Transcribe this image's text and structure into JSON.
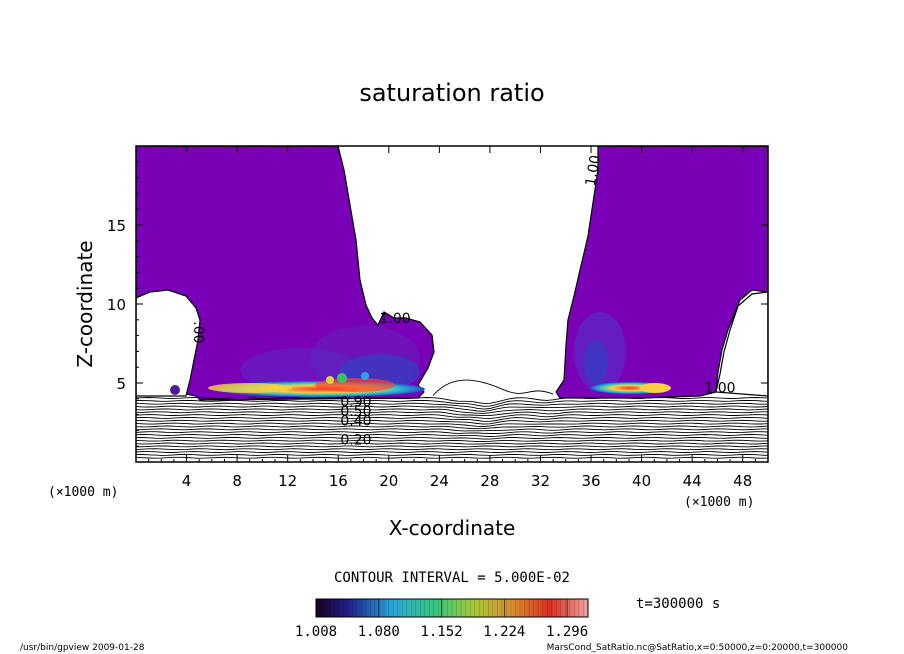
{
  "chart_data": {
    "type": "heatmap",
    "title": "saturation ratio",
    "xlabel": "X-coordinate",
    "ylabel": "Z-coordinate",
    "x_unit": "(×1000 m)",
    "z_unit": "(×1000 m)",
    "xlim": [
      0,
      50
    ],
    "ylim": [
      0,
      20
    ],
    "x_ticks": [
      4,
      8,
      12,
      16,
      20,
      24,
      28,
      32,
      36,
      40,
      44,
      48
    ],
    "y_ticks": [
      5,
      10,
      15
    ],
    "contour_interval_text": "CONTOUR INTERVAL = 5.000E-02",
    "colorbar": {
      "min": 1.008,
      "max": 1.32,
      "tick_values": [
        1.008,
        1.08,
        1.152,
        1.224,
        1.296
      ],
      "tick_labels": [
        "1.008",
        "1.080",
        "1.152",
        "1.224",
        "1.296"
      ]
    },
    "contour_labels": [
      {
        "text": "1.00",
        "x": 20.5,
        "z": 8.8,
        "rotate": 0
      },
      {
        "text": "1.00",
        "x": 36.5,
        "z": 18.4,
        "rotate": -80
      },
      {
        "text": ".00",
        "x": 4.6,
        "z": 8.2,
        "rotate": 90
      },
      {
        "text": "1.00",
        "x": 46.2,
        "z": 4.4,
        "rotate": 0
      },
      {
        "text": "0.90",
        "x": 17.4,
        "z": 3.5,
        "rotate": 0
      },
      {
        "text": "0.50",
        "x": 17.4,
        "z": 2.9,
        "rotate": 0
      },
      {
        "text": "0.40",
        "x": 17.4,
        "z": 2.3,
        "rotate": 0
      },
      {
        "text": "0.20",
        "x": 17.4,
        "z": 1.1,
        "rotate": 0
      }
    ],
    "time_label": "t=300000 s",
    "footer_left": "/usr/bin/gpview  2009-01-28",
    "footer_right": "MarsCond_SatRatio.nc@SatRatio,x=0:50000,z=0:20000,t=300000"
  },
  "colors": {
    "supersat_fill": "#7a00b8",
    "supersat_dark": "#6a1ab8",
    "contour": "#000000",
    "background": "#ffffff"
  }
}
